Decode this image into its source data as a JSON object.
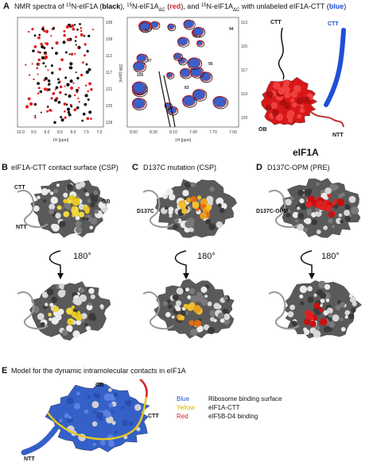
{
  "panelA": {
    "letter": "A",
    "title": [
      {
        "text": "NMR spectra of ",
        "style": "plain"
      },
      {
        "text": "15",
        "style": "sup"
      },
      {
        "text": "N-eIF1A (",
        "style": "plain"
      },
      {
        "text": "black",
        "style": "bold-black"
      },
      {
        "text": "), ",
        "style": "plain"
      },
      {
        "text": "15",
        "style": "sup"
      },
      {
        "text": "N-eIF1A",
        "style": "plain"
      },
      {
        "text": "ΔC",
        "style": "sub"
      },
      {
        "text": " (",
        "style": "plain"
      },
      {
        "text": "red",
        "style": "bold-red"
      },
      {
        "text": "), and ",
        "style": "plain"
      },
      {
        "text": "15",
        "style": "sup"
      },
      {
        "text": "N-eIF1A",
        "style": "plain"
      },
      {
        "text": "ΔC",
        "style": "sub"
      },
      {
        "text": " with unlabeled eIF1A-CTT (",
        "style": "plain"
      },
      {
        "text": "blue",
        "style": "bold-blue"
      },
      {
        "text": ")",
        "style": "plain"
      }
    ],
    "left_spectrum": {
      "xlabel": "1H [ppm]",
      "ylabel": "15N [ppm]",
      "xticks": [
        "10.0",
        "9.5",
        "9.0",
        "8.5",
        "8.0",
        "7.5",
        "7.0"
      ],
      "yticks": [
        "105",
        "109",
        "113",
        "117",
        "121",
        "125",
        "129"
      ]
    },
    "mid_spectrum": {
      "xlabel": "1H [ppm]",
      "xticks": [
        "8.50",
        "8.30",
        "8.10",
        "7.90",
        "7.70",
        "7.50"
      ],
      "yticks": [
        "113",
        "115",
        "117",
        "119",
        "120"
      ],
      "residues": [
        "98",
        "97",
        "100",
        "83",
        "95",
        "94"
      ]
    },
    "cartoon": {
      "ctt_black": "CTT",
      "ctt_blue": "CTT",
      "ob": "OB",
      "ntt": "NTT",
      "name": "eIF1A"
    }
  },
  "panelB": {
    "letter": "B",
    "title": "eIF1A-CTT contact surface (CSP)",
    "ctt": "CTT",
    "ob": "OB",
    "ntt": "NTT",
    "rotation": "180°"
  },
  "panelC": {
    "letter": "C",
    "title": "D137C mutation (CSP)",
    "site": "D137C",
    "rotation": "180°"
  },
  "panelD": {
    "letter": "D",
    "title": "D137C-OPM (PRE)",
    "site": "D137C-OPM",
    "rotation": "180°"
  },
  "panelE": {
    "letter": "E",
    "title": "Model for the dynamic intramolecular contacts in eIF1A",
    "ob": "OB",
    "ctt": "CTT",
    "ntt": "NTT",
    "legend": [
      {
        "color": "Blue",
        "meaning": "Ribosome binding surface"
      },
      {
        "color": "Yellow",
        "meaning": "eIF1A-CTT"
      },
      {
        "color": "Red",
        "meaning": "eIF5B-D4 binding"
      }
    ]
  }
}
